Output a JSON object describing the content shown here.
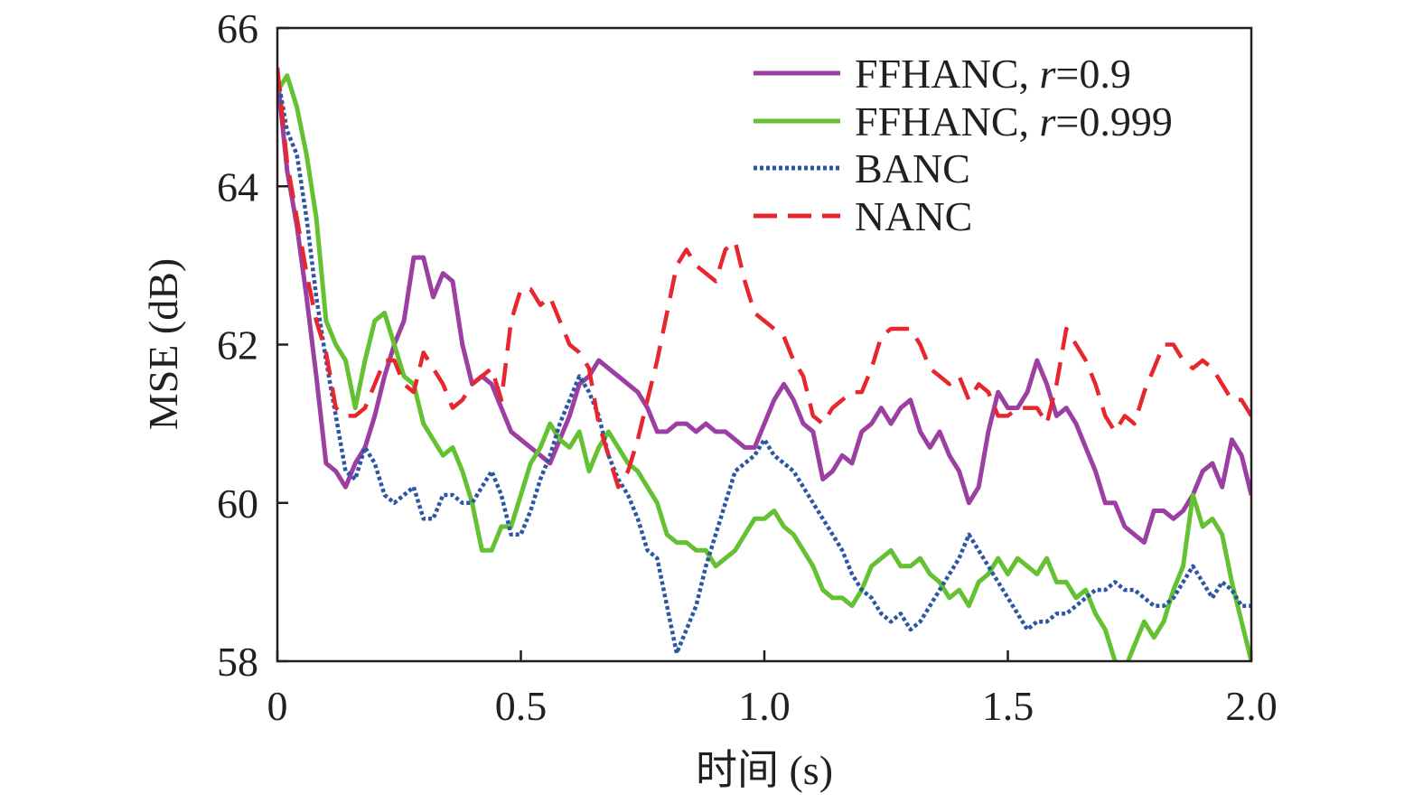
{
  "chart_data": {
    "type": "line",
    "title": "",
    "xlabel": "时间 (s)",
    "ylabel": "MSE (dB)",
    "xlim": [
      0,
      2.0
    ],
    "ylim": [
      58,
      66
    ],
    "x_ticks": [
      0,
      0.5,
      1.0,
      1.5,
      2.0
    ],
    "x_tick_labels": [
      "0",
      "0.5",
      "1.0",
      "1.5",
      "2.0"
    ],
    "y_ticks": [
      58,
      60,
      62,
      64,
      66
    ],
    "y_tick_labels": [
      "58",
      "60",
      "62",
      "64",
      "66"
    ],
    "grid": false,
    "legend_position": "top-right",
    "series": [
      {
        "name": "FFHANC, r=0.9",
        "legend_prefix": "FFHANC, ",
        "legend_var": "r",
        "legend_suffix": "=0.9",
        "color": "#9b3fa2",
        "dash": "solid",
        "x": [
          0,
          0.02,
          0.04,
          0.06,
          0.08,
          0.1,
          0.12,
          0.14,
          0.16,
          0.18,
          0.2,
          0.22,
          0.24,
          0.26,
          0.28,
          0.3,
          0.32,
          0.34,
          0.36,
          0.38,
          0.4,
          0.42,
          0.44,
          0.46,
          0.48,
          0.5,
          0.52,
          0.54,
          0.56,
          0.58,
          0.6,
          0.62,
          0.64,
          0.66,
          0.68,
          0.7,
          0.72,
          0.74,
          0.76,
          0.78,
          0.8,
          0.82,
          0.84,
          0.86,
          0.88,
          0.9,
          0.92,
          0.94,
          0.96,
          0.98,
          1.0,
          1.02,
          1.04,
          1.06,
          1.08,
          1.1,
          1.12,
          1.14,
          1.16,
          1.18,
          1.2,
          1.22,
          1.24,
          1.26,
          1.28,
          1.3,
          1.32,
          1.34,
          1.36,
          1.38,
          1.4,
          1.42,
          1.44,
          1.46,
          1.48,
          1.5,
          1.52,
          1.54,
          1.56,
          1.58,
          1.6,
          1.62,
          1.64,
          1.66,
          1.68,
          1.7,
          1.72,
          1.74,
          1.76,
          1.78,
          1.8,
          1.82,
          1.84,
          1.86,
          1.88,
          1.9,
          1.92,
          1.94,
          1.96,
          1.98,
          2.0
        ],
        "y": [
          65.4,
          64.2,
          63.5,
          62.6,
          61.6,
          60.5,
          60.4,
          60.2,
          60.5,
          60.7,
          61.1,
          61.6,
          62.0,
          62.3,
          63.1,
          63.1,
          62.6,
          62.9,
          62.8,
          62.0,
          61.5,
          61.6,
          61.5,
          61.2,
          60.9,
          60.8,
          60.7,
          60.6,
          60.5,
          60.8,
          61.1,
          61.5,
          61.6,
          61.8,
          61.7,
          61.6,
          61.5,
          61.4,
          61.2,
          60.9,
          60.9,
          61.0,
          61.0,
          60.9,
          61.0,
          60.9,
          60.9,
          60.8,
          60.7,
          60.7,
          61.0,
          61.3,
          61.5,
          61.3,
          61.0,
          60.9,
          60.3,
          60.4,
          60.6,
          60.5,
          60.9,
          61.0,
          61.2,
          61.0,
          61.2,
          61.3,
          60.9,
          60.7,
          60.9,
          60.6,
          60.4,
          60.0,
          60.2,
          60.9,
          61.4,
          61.2,
          61.2,
          61.4,
          61.8,
          61.5,
          61.1,
          61.2,
          61.0,
          60.7,
          60.4,
          60.0,
          60.0,
          59.7,
          59.6,
          59.5,
          59.9,
          59.9,
          59.8,
          59.9,
          60.1,
          60.4,
          60.5,
          60.2,
          60.8,
          60.6,
          60.1
        ]
      },
      {
        "name": "FFHANC, r=0.999",
        "legend_prefix": "FFHANC, ",
        "legend_var": "r",
        "legend_suffix": "=0.999",
        "color": "#63c132",
        "dash": "solid",
        "x": [
          0,
          0.02,
          0.04,
          0.06,
          0.08,
          0.1,
          0.12,
          0.14,
          0.16,
          0.18,
          0.2,
          0.22,
          0.24,
          0.26,
          0.28,
          0.3,
          0.32,
          0.34,
          0.36,
          0.38,
          0.4,
          0.42,
          0.44,
          0.46,
          0.48,
          0.5,
          0.52,
          0.54,
          0.56,
          0.58,
          0.6,
          0.62,
          0.64,
          0.66,
          0.68,
          0.7,
          0.72,
          0.74,
          0.76,
          0.78,
          0.8,
          0.82,
          0.84,
          0.86,
          0.88,
          0.9,
          0.92,
          0.94,
          0.96,
          0.98,
          1.0,
          1.02,
          1.04,
          1.06,
          1.08,
          1.1,
          1.12,
          1.14,
          1.16,
          1.18,
          1.2,
          1.22,
          1.24,
          1.26,
          1.28,
          1.3,
          1.32,
          1.34,
          1.36,
          1.38,
          1.4,
          1.42,
          1.44,
          1.46,
          1.48,
          1.5,
          1.52,
          1.54,
          1.56,
          1.58,
          1.6,
          1.62,
          1.64,
          1.66,
          1.68,
          1.7,
          1.72,
          1.74,
          1.76,
          1.78,
          1.8,
          1.82,
          1.84,
          1.86,
          1.88,
          1.9,
          1.92,
          1.94,
          1.96,
          1.98,
          2.0
        ],
        "y": [
          65.2,
          65.4,
          65.0,
          64.4,
          63.6,
          62.3,
          62.0,
          61.8,
          61.2,
          61.8,
          62.3,
          62.4,
          62.0,
          61.6,
          61.5,
          61.0,
          60.8,
          60.6,
          60.7,
          60.4,
          60.0,
          59.4,
          59.4,
          59.7,
          59.7,
          60.1,
          60.5,
          60.7,
          61.0,
          60.8,
          60.7,
          60.9,
          60.4,
          60.7,
          60.9,
          60.7,
          60.5,
          60.4,
          60.2,
          60.0,
          59.6,
          59.5,
          59.5,
          59.4,
          59.4,
          59.2,
          59.3,
          59.4,
          59.6,
          59.8,
          59.8,
          59.9,
          59.7,
          59.6,
          59.4,
          59.2,
          58.9,
          58.8,
          58.8,
          58.7,
          58.9,
          59.2,
          59.3,
          59.4,
          59.2,
          59.2,
          59.3,
          59.1,
          59.0,
          58.8,
          58.9,
          58.7,
          59.0,
          59.1,
          59.3,
          59.1,
          59.3,
          59.2,
          59.1,
          59.3,
          59.0,
          59.0,
          58.8,
          58.9,
          58.6,
          58.4,
          58.0,
          57.9,
          58.2,
          58.5,
          58.3,
          58.5,
          58.9,
          59.2,
          60.1,
          59.7,
          59.8,
          59.6,
          59.0,
          58.5,
          58.0
        ]
      },
      {
        "name": "BANC",
        "legend_prefix": "BANC",
        "legend_var": "",
        "legend_suffix": "",
        "color": "#2b55a5",
        "dash": "dotted",
        "x": [
          0,
          0.02,
          0.04,
          0.06,
          0.08,
          0.1,
          0.12,
          0.14,
          0.16,
          0.18,
          0.2,
          0.22,
          0.24,
          0.26,
          0.28,
          0.3,
          0.32,
          0.34,
          0.36,
          0.38,
          0.4,
          0.42,
          0.44,
          0.46,
          0.48,
          0.5,
          0.52,
          0.54,
          0.56,
          0.58,
          0.6,
          0.62,
          0.64,
          0.66,
          0.68,
          0.7,
          0.72,
          0.74,
          0.76,
          0.78,
          0.8,
          0.82,
          0.84,
          0.86,
          0.88,
          0.9,
          0.92,
          0.94,
          0.96,
          0.98,
          1.0,
          1.02,
          1.04,
          1.06,
          1.08,
          1.1,
          1.12,
          1.14,
          1.16,
          1.18,
          1.2,
          1.22,
          1.24,
          1.26,
          1.28,
          1.3,
          1.32,
          1.34,
          1.36,
          1.38,
          1.4,
          1.42,
          1.44,
          1.46,
          1.48,
          1.5,
          1.52,
          1.54,
          1.56,
          1.58,
          1.6,
          1.62,
          1.64,
          1.66,
          1.68,
          1.7,
          1.72,
          1.74,
          1.76,
          1.78,
          1.8,
          1.82,
          1.84,
          1.86,
          1.88,
          1.9,
          1.92,
          1.94,
          1.96,
          1.98,
          2.0
        ],
        "y": [
          65.4,
          64.7,
          64.4,
          63.6,
          62.6,
          61.8,
          61.1,
          60.4,
          60.3,
          60.7,
          60.5,
          60.1,
          60.0,
          60.1,
          60.2,
          59.8,
          59.8,
          60.1,
          60.1,
          60.0,
          60.0,
          60.2,
          60.4,
          60.1,
          59.6,
          59.6,
          59.9,
          60.3,
          60.6,
          61.0,
          61.3,
          61.6,
          61.4,
          61.1,
          60.6,
          60.3,
          60.1,
          59.8,
          59.4,
          59.3,
          58.7,
          58.1,
          58.4,
          58.7,
          59.2,
          59.6,
          60.0,
          60.4,
          60.5,
          60.6,
          60.8,
          60.6,
          60.5,
          60.4,
          60.2,
          60.0,
          59.8,
          59.6,
          59.4,
          59.1,
          58.9,
          58.8,
          58.6,
          58.5,
          58.6,
          58.4,
          58.5,
          58.7,
          58.9,
          59.1,
          59.3,
          59.6,
          59.4,
          59.2,
          59.0,
          58.8,
          58.6,
          58.4,
          58.5,
          58.5,
          58.6,
          58.6,
          58.7,
          58.8,
          58.9,
          58.9,
          59.0,
          58.9,
          58.9,
          58.8,
          58.7,
          58.7,
          58.8,
          59.0,
          59.2,
          59.0,
          58.8,
          59.0,
          58.9,
          58.7,
          58.7
        ]
      },
      {
        "name": "NANC",
        "legend_prefix": "NANC",
        "legend_var": "",
        "legend_suffix": "",
        "color": "#e8262d",
        "dash": "dashed",
        "x": [
          0,
          0.02,
          0.04,
          0.06,
          0.08,
          0.1,
          0.12,
          0.14,
          0.16,
          0.18,
          0.2,
          0.22,
          0.24,
          0.26,
          0.28,
          0.3,
          0.32,
          0.34,
          0.36,
          0.38,
          0.4,
          0.42,
          0.44,
          0.46,
          0.48,
          0.5,
          0.52,
          0.54,
          0.56,
          0.58,
          0.6,
          0.62,
          0.64,
          0.66,
          0.68,
          0.7,
          0.72,
          0.74,
          0.76,
          0.78,
          0.8,
          0.82,
          0.84,
          0.86,
          0.88,
          0.9,
          0.92,
          0.94,
          0.96,
          0.98,
          1.0,
          1.02,
          1.04,
          1.06,
          1.08,
          1.1,
          1.12,
          1.14,
          1.16,
          1.18,
          1.2,
          1.22,
          1.24,
          1.26,
          1.28,
          1.3,
          1.32,
          1.34,
          1.36,
          1.38,
          1.4,
          1.42,
          1.44,
          1.46,
          1.48,
          1.5,
          1.52,
          1.54,
          1.56,
          1.58,
          1.6,
          1.62,
          1.64,
          1.66,
          1.68,
          1.7,
          1.72,
          1.74,
          1.76,
          1.78,
          1.8,
          1.82,
          1.84,
          1.86,
          1.88,
          1.9,
          1.92,
          1.94,
          1.96,
          1.98,
          2.0
        ],
        "y": [
          65.5,
          64.3,
          63.6,
          62.9,
          62.3,
          61.9,
          61.2,
          61.1,
          61.1,
          61.2,
          61.5,
          61.8,
          61.8,
          61.5,
          61.4,
          61.9,
          61.7,
          61.5,
          61.2,
          61.3,
          61.5,
          61.6,
          61.7,
          61.3,
          62.3,
          62.7,
          62.7,
          62.5,
          62.6,
          62.3,
          62.0,
          61.9,
          61.7,
          61.0,
          60.6,
          60.2,
          60.4,
          60.8,
          61.3,
          61.8,
          62.4,
          63.0,
          63.2,
          63.0,
          62.9,
          62.8,
          63.2,
          63.3,
          62.8,
          62.4,
          62.3,
          62.2,
          62.1,
          61.8,
          61.6,
          61.1,
          61.0,
          61.2,
          61.3,
          61.4,
          61.4,
          61.7,
          62.1,
          62.2,
          62.2,
          62.2,
          62.0,
          61.7,
          61.6,
          61.5,
          61.6,
          61.3,
          61.5,
          61.4,
          61.1,
          61.1,
          61.2,
          61.2,
          61.2,
          61.0,
          61.5,
          62.2,
          62.0,
          61.8,
          61.5,
          61.1,
          60.9,
          61.1,
          61.0,
          61.4,
          61.7,
          62.0,
          62.0,
          61.8,
          61.7,
          61.8,
          61.7,
          61.5,
          61.3,
          61.3,
          61.1
        ]
      }
    ]
  }
}
